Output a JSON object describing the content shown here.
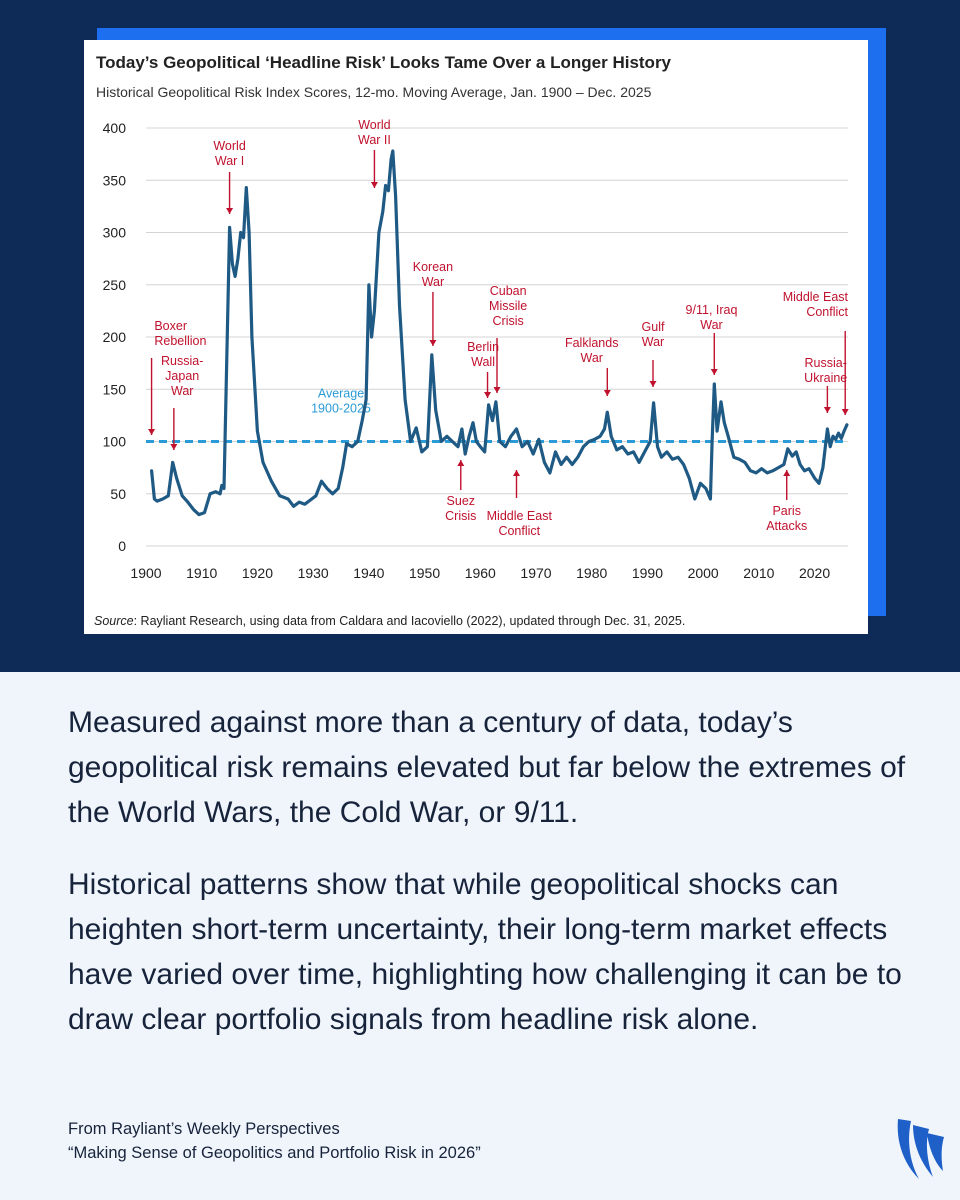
{
  "chart_data": {
    "type": "line",
    "title": "Today’s Geopolitical ‘Headline Risk’ Looks Tame Over a Longer History",
    "subtitle": "Historical Geopolitical Risk Index Scores, 12-mo. Moving Average, Jan. 1900 – Dec. 2025",
    "xlabel": "",
    "ylabel": "",
    "xlim": [
      1900,
      2026
    ],
    "ylim": [
      0,
      400
    ],
    "x_ticks": [
      "1900",
      "1910",
      "1920",
      "1930",
      "1940",
      "1950",
      "1960",
      "1970",
      "1980",
      "1990",
      "2000",
      "2010",
      "2020"
    ],
    "y_ticks": [
      "0",
      "50",
      "100",
      "150",
      "200",
      "250",
      "300",
      "350",
      "400"
    ],
    "grid": true,
    "series": [
      {
        "name": "Geopolitical Risk Index (12-mo. moving average)",
        "color": "#1f5a85",
        "points": [
          [
            1901.0,
            72
          ],
          [
            1901.5,
            45
          ],
          [
            1902.0,
            43
          ],
          [
            1903.0,
            45
          ],
          [
            1904.0,
            48
          ],
          [
            1904.8,
            80
          ],
          [
            1905.5,
            65
          ],
          [
            1906.5,
            48
          ],
          [
            1907.5,
            42
          ],
          [
            1908.5,
            35
          ],
          [
            1909.5,
            30
          ],
          [
            1910.5,
            32
          ],
          [
            1911.5,
            50
          ],
          [
            1912.5,
            52
          ],
          [
            1913.3,
            50
          ],
          [
            1913.6,
            58
          ],
          [
            1914.0,
            55
          ],
          [
            1914.5,
            180
          ],
          [
            1915.0,
            305
          ],
          [
            1915.5,
            270
          ],
          [
            1916.0,
            258
          ],
          [
            1916.5,
            275
          ],
          [
            1917.0,
            300
          ],
          [
            1917.5,
            295
          ],
          [
            1918.0,
            343
          ],
          [
            1918.5,
            300
          ],
          [
            1919.0,
            200
          ],
          [
            1920.0,
            110
          ],
          [
            1921.0,
            80
          ],
          [
            1922.5,
            62
          ],
          [
            1924.0,
            48
          ],
          [
            1925.5,
            45
          ],
          [
            1926.5,
            38
          ],
          [
            1927.5,
            42
          ],
          [
            1928.5,
            40
          ],
          [
            1929.5,
            44
          ],
          [
            1930.5,
            48
          ],
          [
            1931.5,
            62
          ],
          [
            1932.5,
            55
          ],
          [
            1933.5,
            50
          ],
          [
            1934.5,
            55
          ],
          [
            1935.3,
            75
          ],
          [
            1936.0,
            98
          ],
          [
            1937.0,
            95
          ],
          [
            1938.0,
            100
          ],
          [
            1938.8,
            120
          ],
          [
            1939.5,
            140
          ],
          [
            1940.0,
            250
          ],
          [
            1940.5,
            200
          ],
          [
            1941.0,
            225
          ],
          [
            1941.8,
            300
          ],
          [
            1942.5,
            320
          ],
          [
            1943.0,
            345
          ],
          [
            1943.5,
            340
          ],
          [
            1944.0,
            370
          ],
          [
            1944.3,
            378
          ],
          [
            1944.8,
            335
          ],
          [
            1945.5,
            230
          ],
          [
            1946.5,
            140
          ],
          [
            1947.5,
            100
          ],
          [
            1948.5,
            113
          ],
          [
            1949.5,
            90
          ],
          [
            1950.5,
            95
          ],
          [
            1951.3,
            183
          ],
          [
            1952.0,
            130
          ],
          [
            1953.0,
            100
          ],
          [
            1954.0,
            105
          ],
          [
            1955.0,
            100
          ],
          [
            1956.0,
            95
          ],
          [
            1956.7,
            112
          ],
          [
            1957.3,
            88
          ],
          [
            1958.0,
            105
          ],
          [
            1958.7,
            118
          ],
          [
            1959.3,
            100
          ],
          [
            1960.0,
            95
          ],
          [
            1960.8,
            90
          ],
          [
            1961.5,
            135
          ],
          [
            1962.2,
            120
          ],
          [
            1962.8,
            138
          ],
          [
            1963.5,
            100
          ],
          [
            1964.5,
            95
          ],
          [
            1965.5,
            105
          ],
          [
            1966.5,
            112
          ],
          [
            1967.5,
            95
          ],
          [
            1968.5,
            100
          ],
          [
            1969.5,
            88
          ],
          [
            1970.5,
            102
          ],
          [
            1971.5,
            80
          ],
          [
            1972.5,
            70
          ],
          [
            1973.5,
            90
          ],
          [
            1974.5,
            78
          ],
          [
            1975.5,
            85
          ],
          [
            1976.5,
            78
          ],
          [
            1977.5,
            85
          ],
          [
            1978.5,
            95
          ],
          [
            1979.5,
            100
          ],
          [
            1980.5,
            102
          ],
          [
            1981.5,
            105
          ],
          [
            1982.3,
            112
          ],
          [
            1982.8,
            128
          ],
          [
            1983.5,
            105
          ],
          [
            1984.5,
            92
          ],
          [
            1985.5,
            95
          ],
          [
            1986.5,
            88
          ],
          [
            1987.5,
            90
          ],
          [
            1988.5,
            80
          ],
          [
            1989.5,
            90
          ],
          [
            1990.5,
            100
          ],
          [
            1991.1,
            137
          ],
          [
            1991.8,
            95
          ],
          [
            1992.5,
            85
          ],
          [
            1993.5,
            90
          ],
          [
            1994.5,
            83
          ],
          [
            1995.5,
            85
          ],
          [
            1996.5,
            78
          ],
          [
            1997.5,
            65
          ],
          [
            1998.5,
            45
          ],
          [
            1999.5,
            60
          ],
          [
            2000.5,
            55
          ],
          [
            2001.3,
            45
          ],
          [
            2001.6,
            100
          ],
          [
            2002.0,
            155
          ],
          [
            2002.5,
            110
          ],
          [
            2003.2,
            138
          ],
          [
            2003.8,
            118
          ],
          [
            2004.5,
            105
          ],
          [
            2005.5,
            85
          ],
          [
            2006.5,
            83
          ],
          [
            2007.5,
            80
          ],
          [
            2008.5,
            72
          ],
          [
            2009.5,
            70
          ],
          [
            2010.5,
            74
          ],
          [
            2011.5,
            70
          ],
          [
            2012.5,
            72
          ],
          [
            2013.5,
            75
          ],
          [
            2014.5,
            78
          ],
          [
            2015.2,
            93
          ],
          [
            2016.0,
            86
          ],
          [
            2016.7,
            90
          ],
          [
            2017.4,
            78
          ],
          [
            2018.2,
            72
          ],
          [
            2019.0,
            74
          ],
          [
            2020.0,
            65
          ],
          [
            2020.8,
            60
          ],
          [
            2021.5,
            75
          ],
          [
            2022.0,
            98
          ],
          [
            2022.3,
            112
          ],
          [
            2022.8,
            95
          ],
          [
            2023.3,
            105
          ],
          [
            2023.8,
            102
          ],
          [
            2024.3,
            108
          ],
          [
            2024.8,
            103
          ],
          [
            2025.3,
            110
          ],
          [
            2025.8,
            116
          ]
        ]
      }
    ],
    "reference_line": {
      "label": "Average 1900-2025",
      "value": 100,
      "color": "#2a9bd6"
    },
    "annotations": [
      {
        "label": "Boxer Rebellion",
        "year": 1901
      },
      {
        "label": "Russia-Japan War",
        "year": 1905
      },
      {
        "label": "World War I",
        "year": 1915
      },
      {
        "label": "World War II",
        "year": 1941
      },
      {
        "label": "Korean War",
        "year": 1951
      },
      {
        "label": "Suez Crisis",
        "year": 1956
      },
      {
        "label": "Berlin Wall",
        "year": 1961
      },
      {
        "label": "Cuban Missile Crisis",
        "year": 1962
      },
      {
        "label": "Middle East Conflict",
        "year": 1967
      },
      {
        "label": "Falklands War",
        "year": 1982
      },
      {
        "label": "Gulf War",
        "year": 1990
      },
      {
        "label": "9/11, Iraq War",
        "year": 2001
      },
      {
        "label": "Paris Attacks",
        "year": 2015
      },
      {
        "label": "Russia-Ukraine",
        "year": 2022
      },
      {
        "label": "Middle East Conflict",
        "year": 2023
      }
    ],
    "source_label": "Source",
    "source_text": ": Rayliant Research, using data from Caldara and Iacoviello (2022), updated through Dec. 31, 2025."
  },
  "body": {
    "paragraph1": "Measured against more than a century of data, today’s geopolitical risk remains elevated but far below the extremes of the World Wars, the Cold War, or 9/11.",
    "paragraph2": "Historical patterns show that while geopolitical shocks can heighten short-term uncertainty, their long-term market effects have varied over time, highlighting how challenging it can be to draw clear portfolio signals from headline risk alone."
  },
  "footer": {
    "line1": "From Rayliant’s Weekly Perspectives",
    "line2": "“Making Sense of Geopolitics and Portfolio Risk in 2026”"
  },
  "colors": {
    "navy": "#0e2a57",
    "accent_blue": "#1e6ff0",
    "annotation_red": "#c0122e",
    "page_background": "#f0f5fc"
  },
  "icons": {
    "brand": "rayliant-logo-icon"
  }
}
